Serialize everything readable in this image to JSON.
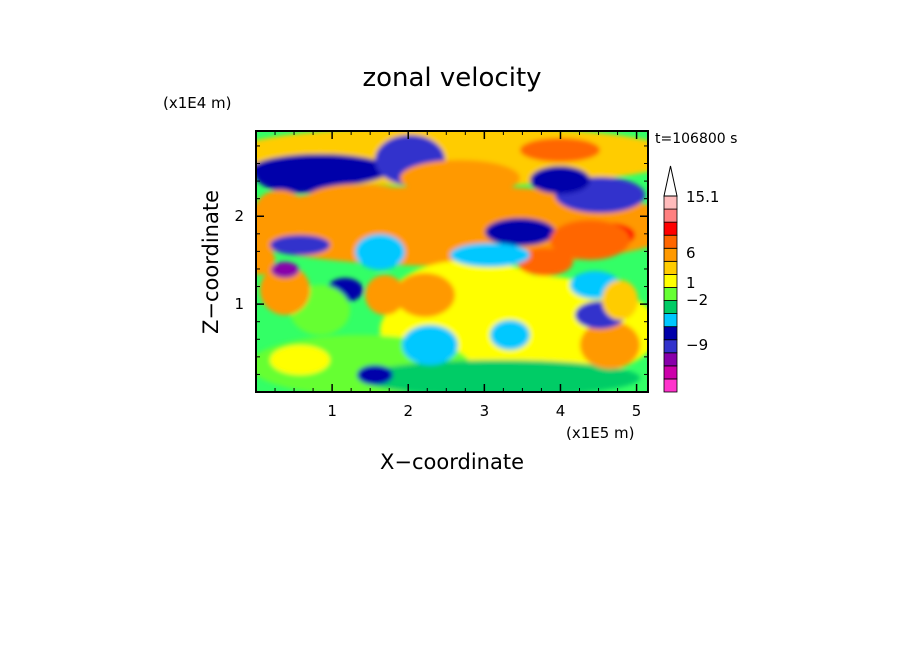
{
  "chart_data": {
    "type": "heatmap",
    "title": "zonal velocity",
    "xlabel": "X−coordinate",
    "ylabel": "Z−coordinate",
    "x_unit": "(x1E5 m)",
    "y_unit": "(x1E4 m)",
    "time_label": "t=106800 s",
    "xlim": [
      0,
      5.15
    ],
    "ylim": [
      0,
      2.97
    ],
    "x_ticks": [
      1,
      2,
      3,
      4,
      5
    ],
    "y_ticks": [
      1,
      2
    ],
    "colorbar": {
      "labels": [
        "15.1",
        "6",
        "1",
        "−2",
        "−9"
      ],
      "levels": [
        -15,
        -12,
        -9,
        -6,
        -3,
        -2,
        -1,
        0,
        1,
        2,
        3,
        6,
        9,
        12,
        15.1
      ],
      "colors": [
        "#ff33cc",
        "#cc00aa",
        "#8800aa",
        "#3333cc",
        "#0000aa",
        "#00c8ff",
        "#00cc66",
        "#66ff33",
        "#ffff00",
        "#ffcc00",
        "#ff9900",
        "#ff6600",
        "#ff0000",
        "#ff8080",
        "#ffbbbb"
      ]
    },
    "field_note": "2-D contour field; blob layout approximated (see script)"
  }
}
